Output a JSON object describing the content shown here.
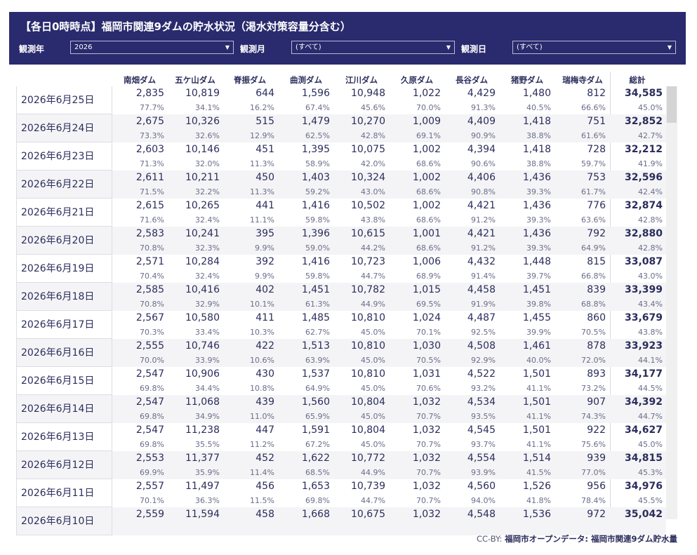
{
  "header": {
    "title": "【各日0時時点】福岡市関連9ダムの貯水状況（渇水対策容量分含む）",
    "filters": [
      {
        "label": "観測年",
        "value": "2026"
      },
      {
        "label": "観測月",
        "value": "(すべて)"
      },
      {
        "label": "観測日",
        "value": "(すべて)"
      }
    ]
  },
  "table": {
    "columns": [
      "南畑ダム",
      "五ケ山ダム",
      "脊振ダム",
      "曲渕ダム",
      "江川ダム",
      "久原ダム",
      "長谷ダム",
      "猪野ダム",
      "瑞梅寺ダム",
      "総計"
    ],
    "rows": [
      {
        "date": "2026年6月25日",
        "values": [
          "2,835",
          "10,819",
          "644",
          "1,596",
          "10,948",
          "1,022",
          "4,429",
          "1,480",
          "812",
          "34,585"
        ],
        "pcts": [
          "77.7%",
          "34.1%",
          "16.2%",
          "67.4%",
          "45.6%",
          "70.0%",
          "91.3%",
          "40.5%",
          "66.6%",
          "45.0%"
        ]
      },
      {
        "date": "2026年6月24日",
        "values": [
          "2,675",
          "10,326",
          "515",
          "1,479",
          "10,270",
          "1,009",
          "4,409",
          "1,418",
          "751",
          "32,852"
        ],
        "pcts": [
          "73.3%",
          "32.6%",
          "12.9%",
          "62.5%",
          "42.8%",
          "69.1%",
          "90.9%",
          "38.8%",
          "61.6%",
          "42.7%"
        ]
      },
      {
        "date": "2026年6月23日",
        "values": [
          "2,603",
          "10,146",
          "451",
          "1,395",
          "10,075",
          "1,002",
          "4,394",
          "1,418",
          "728",
          "32,212"
        ],
        "pcts": [
          "71.3%",
          "32.0%",
          "11.3%",
          "58.9%",
          "42.0%",
          "68.6%",
          "90.6%",
          "38.8%",
          "59.7%",
          "41.9%"
        ]
      },
      {
        "date": "2026年6月22日",
        "values": [
          "2,611",
          "10,211",
          "450",
          "1,403",
          "10,324",
          "1,002",
          "4,406",
          "1,436",
          "753",
          "32,596"
        ],
        "pcts": [
          "71.5%",
          "32.2%",
          "11.3%",
          "59.2%",
          "43.0%",
          "68.6%",
          "90.8%",
          "39.3%",
          "61.7%",
          "42.4%"
        ]
      },
      {
        "date": "2026年6月21日",
        "values": [
          "2,615",
          "10,265",
          "441",
          "1,416",
          "10,502",
          "1,002",
          "4,421",
          "1,436",
          "776",
          "32,874"
        ],
        "pcts": [
          "71.6%",
          "32.4%",
          "11.1%",
          "59.8%",
          "43.8%",
          "68.6%",
          "91.2%",
          "39.3%",
          "63.6%",
          "42.8%"
        ]
      },
      {
        "date": "2026年6月20日",
        "values": [
          "2,583",
          "10,241",
          "395",
          "1,396",
          "10,615",
          "1,001",
          "4,421",
          "1,436",
          "792",
          "32,880"
        ],
        "pcts": [
          "70.8%",
          "32.3%",
          "9.9%",
          "59.0%",
          "44.2%",
          "68.6%",
          "91.2%",
          "39.3%",
          "64.9%",
          "42.8%"
        ]
      },
      {
        "date": "2026年6月19日",
        "values": [
          "2,571",
          "10,284",
          "392",
          "1,416",
          "10,723",
          "1,006",
          "4,432",
          "1,448",
          "815",
          "33,087"
        ],
        "pcts": [
          "70.4%",
          "32.4%",
          "9.9%",
          "59.8%",
          "44.7%",
          "68.9%",
          "91.4%",
          "39.7%",
          "66.8%",
          "43.0%"
        ]
      },
      {
        "date": "2026年6月18日",
        "values": [
          "2,585",
          "10,416",
          "402",
          "1,451",
          "10,782",
          "1,015",
          "4,458",
          "1,451",
          "839",
          "33,399"
        ],
        "pcts": [
          "70.8%",
          "32.9%",
          "10.1%",
          "61.3%",
          "44.9%",
          "69.5%",
          "91.9%",
          "39.8%",
          "68.8%",
          "43.4%"
        ]
      },
      {
        "date": "2026年6月17日",
        "values": [
          "2,567",
          "10,580",
          "411",
          "1,485",
          "10,810",
          "1,024",
          "4,487",
          "1,455",
          "860",
          "33,679"
        ],
        "pcts": [
          "70.3%",
          "33.4%",
          "10.3%",
          "62.7%",
          "45.0%",
          "70.1%",
          "92.5%",
          "39.9%",
          "70.5%",
          "43.8%"
        ]
      },
      {
        "date": "2026年6月16日",
        "values": [
          "2,555",
          "10,746",
          "422",
          "1,513",
          "10,810",
          "1,030",
          "4,508",
          "1,461",
          "878",
          "33,923"
        ],
        "pcts": [
          "70.0%",
          "33.9%",
          "10.6%",
          "63.9%",
          "45.0%",
          "70.5%",
          "92.9%",
          "40.0%",
          "72.0%",
          "44.1%"
        ]
      },
      {
        "date": "2026年6月15日",
        "values": [
          "2,547",
          "10,906",
          "430",
          "1,537",
          "10,810",
          "1,031",
          "4,522",
          "1,501",
          "893",
          "34,177"
        ],
        "pcts": [
          "69.8%",
          "34.4%",
          "10.8%",
          "64.9%",
          "45.0%",
          "70.6%",
          "93.2%",
          "41.1%",
          "73.2%",
          "44.5%"
        ]
      },
      {
        "date": "2026年6月14日",
        "values": [
          "2,547",
          "11,068",
          "439",
          "1,560",
          "10,804",
          "1,032",
          "4,534",
          "1,501",
          "907",
          "34,392"
        ],
        "pcts": [
          "69.8%",
          "34.9%",
          "11.0%",
          "65.9%",
          "45.0%",
          "70.7%",
          "93.5%",
          "41.1%",
          "74.3%",
          "44.7%"
        ]
      },
      {
        "date": "2026年6月13日",
        "values": [
          "2,547",
          "11,238",
          "447",
          "1,591",
          "10,804",
          "1,032",
          "4,545",
          "1,501",
          "922",
          "34,627"
        ],
        "pcts": [
          "69.8%",
          "35.5%",
          "11.2%",
          "67.2%",
          "45.0%",
          "70.7%",
          "93.7%",
          "41.1%",
          "75.6%",
          "45.0%"
        ]
      },
      {
        "date": "2026年6月12日",
        "values": [
          "2,553",
          "11,377",
          "452",
          "1,622",
          "10,772",
          "1,032",
          "4,554",
          "1,514",
          "939",
          "34,815"
        ],
        "pcts": [
          "69.9%",
          "35.9%",
          "11.4%",
          "68.5%",
          "44.9%",
          "70.7%",
          "93.9%",
          "41.5%",
          "77.0%",
          "45.3%"
        ]
      },
      {
        "date": "2026年6月11日",
        "values": [
          "2,557",
          "11,497",
          "456",
          "1,653",
          "10,739",
          "1,032",
          "4,560",
          "1,526",
          "956",
          "34,976"
        ],
        "pcts": [
          "70.1%",
          "36.3%",
          "11.5%",
          "69.8%",
          "44.7%",
          "70.7%",
          "94.0%",
          "41.8%",
          "78.4%",
          "45.5%"
        ]
      },
      {
        "date": "2026年6月10日",
        "values": [
          "2,559",
          "11,594",
          "458",
          "1,668",
          "10,675",
          "1,032",
          "4,548",
          "1,536",
          "972",
          "35,042"
        ],
        "pcts": [
          "",
          "",
          "",
          "",
          "",
          "",
          "",
          "",
          "",
          ""
        ]
      }
    ]
  },
  "footer": {
    "prefix": "CC-BY: ",
    "source": "福岡市オープンデータ: 福岡市関連9ダム貯水量"
  },
  "colors": {
    "header_bg": "#2a2a6e",
    "text": "#2b2d5c",
    "row_alt": "#f4f4f6"
  }
}
